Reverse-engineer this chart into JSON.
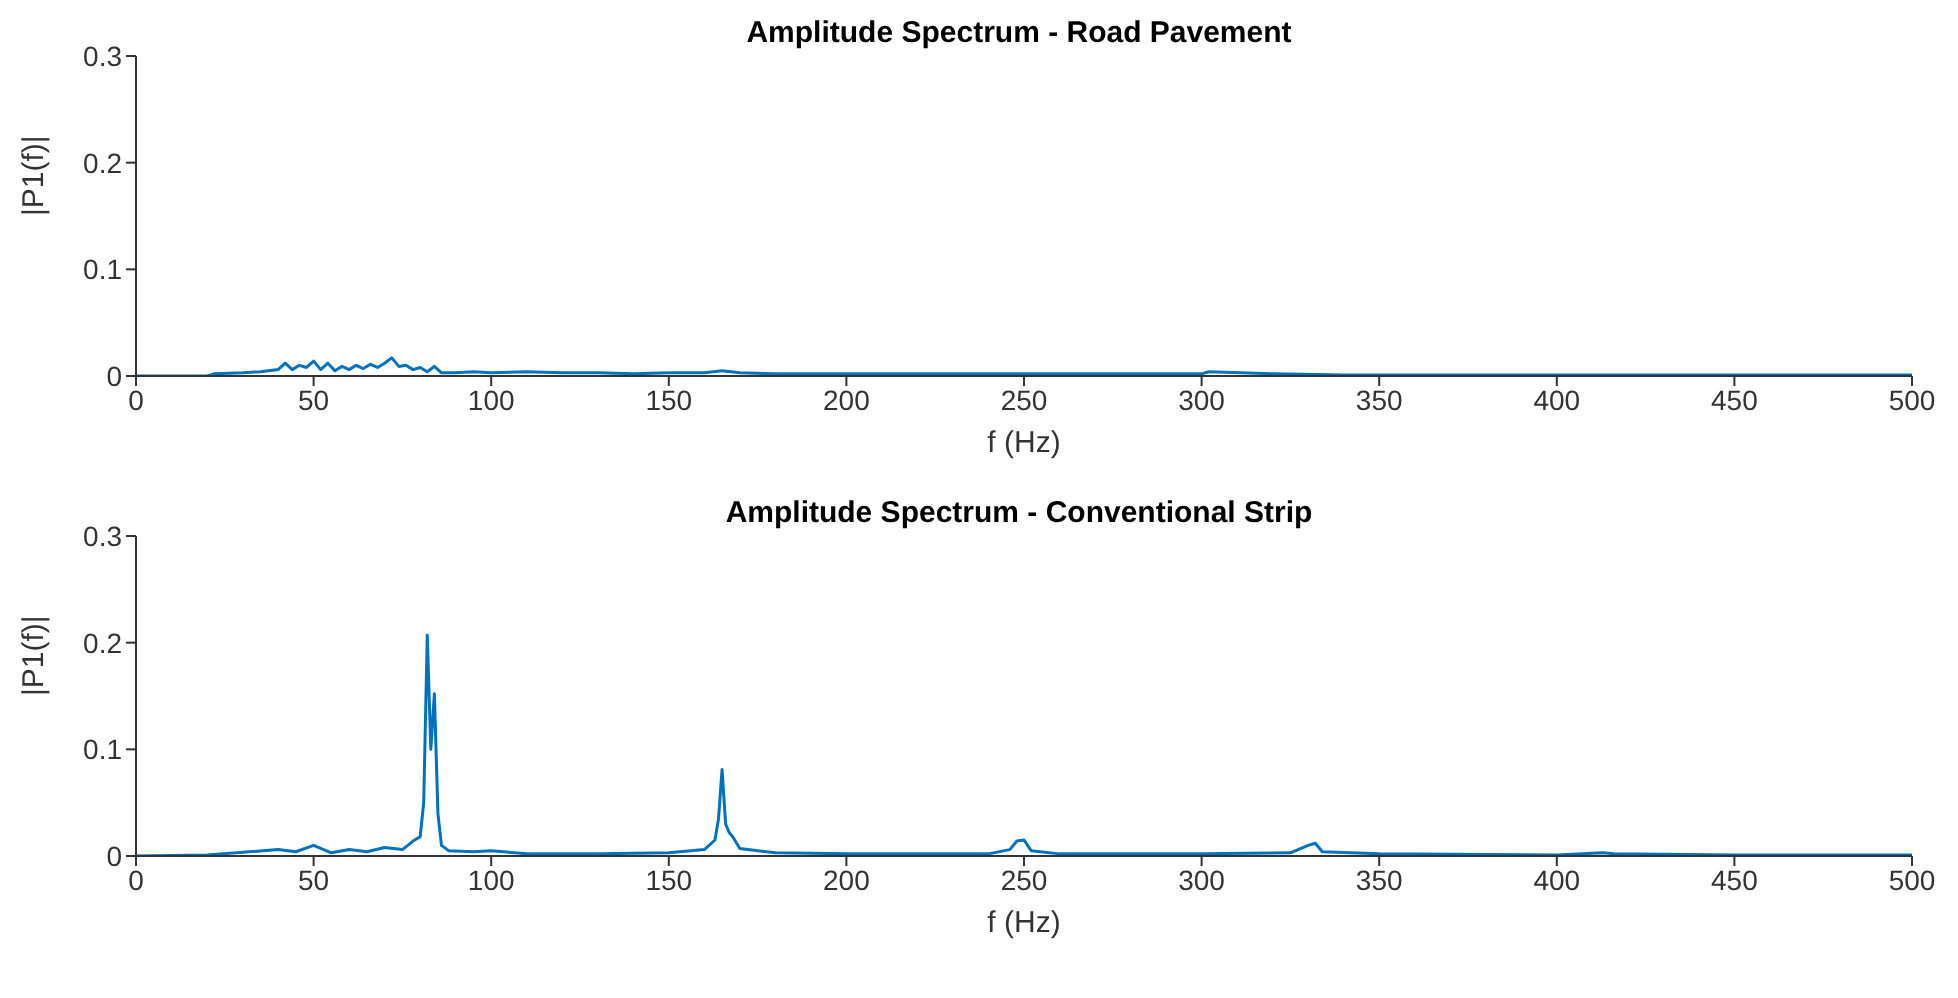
{
  "chart_data": [
    {
      "type": "line",
      "title": "Amplitude Spectrum - Road Pavement",
      "xlabel": "f (Hz)",
      "ylabel": "|P1(f)|",
      "xlim": [
        0,
        500
      ],
      "xticks": [
        0,
        50,
        100,
        150,
        200,
        250,
        300,
        350,
        400,
        450,
        500
      ],
      "ylim": [
        0,
        0.3
      ],
      "yticks": [
        0,
        0.1,
        0.2,
        0.3
      ],
      "grid": false,
      "legend": false,
      "marker": "none",
      "line_style": "solid",
      "series": [
        {
          "color": "#0072bd",
          "x": [
            0,
            20,
            22,
            30,
            35,
            40,
            42,
            44,
            46,
            48,
            50,
            52,
            54,
            56,
            58,
            60,
            62,
            64,
            66,
            68,
            70,
            72,
            74,
            76,
            78,
            80,
            82,
            84,
            86,
            90,
            95,
            100,
            110,
            120,
            130,
            140,
            150,
            160,
            165,
            170,
            180,
            190,
            200,
            220,
            240,
            260,
            280,
            300,
            302,
            320,
            340,
            360,
            380,
            400,
            420,
            440,
            460,
            480,
            500
          ],
          "values": [
            0,
            0,
            0.002,
            0.003,
            0.004,
            0.006,
            0.012,
            0.006,
            0.01,
            0.008,
            0.014,
            0.006,
            0.012,
            0.005,
            0.009,
            0.006,
            0.01,
            0.007,
            0.011,
            0.008,
            0.012,
            0.017,
            0.009,
            0.01,
            0.006,
            0.008,
            0.004,
            0.009,
            0.003,
            0.003,
            0.004,
            0.003,
            0.004,
            0.003,
            0.003,
            0.002,
            0.003,
            0.003,
            0.005,
            0.003,
            0.002,
            0.002,
            0.002,
            0.002,
            0.002,
            0.002,
            0.002,
            0.002,
            0.004,
            0.002,
            0.001,
            0.001,
            0.001,
            0.001,
            0.001,
            0.001,
            0.001,
            0.001,
            0.001
          ]
        }
      ]
    },
    {
      "type": "line",
      "title": "Amplitude Spectrum - Conventional Strip",
      "xlabel": "f (Hz)",
      "ylabel": "|P1(f)|",
      "xlim": [
        0,
        500
      ],
      "xticks": [
        0,
        50,
        100,
        150,
        200,
        250,
        300,
        350,
        400,
        450,
        500
      ],
      "ylim": [
        0,
        0.3
      ],
      "yticks": [
        0,
        0.1,
        0.2,
        0.3
      ],
      "grid": false,
      "legend": false,
      "marker": "none",
      "line_style": "solid",
      "series": [
        {
          "color": "#0072bd",
          "x": [
            0,
            20,
            40,
            45,
            50,
            55,
            60,
            65,
            70,
            75,
            78,
            80,
            81,
            82,
            83,
            84,
            85,
            86,
            88,
            95,
            100,
            110,
            130,
            150,
            160,
            163,
            164,
            165,
            166,
            167,
            168,
            170,
            180,
            200,
            220,
            240,
            246,
            248,
            250,
            252,
            260,
            300,
            325,
            330,
            332,
            334,
            350,
            400,
            413,
            416,
            450,
            500
          ],
          "values": [
            0,
            0.001,
            0.006,
            0.004,
            0.01,
            0.003,
            0.006,
            0.004,
            0.008,
            0.006,
            0.014,
            0.018,
            0.05,
            0.207,
            0.1,
            0.152,
            0.04,
            0.01,
            0.005,
            0.004,
            0.005,
            0.002,
            0.002,
            0.003,
            0.006,
            0.015,
            0.035,
            0.081,
            0.03,
            0.022,
            0.018,
            0.007,
            0.003,
            0.002,
            0.002,
            0.002,
            0.006,
            0.014,
            0.015,
            0.005,
            0.002,
            0.002,
            0.003,
            0.01,
            0.012,
            0.004,
            0.002,
            0.001,
            0.003,
            0.002,
            0.001,
            0.001
          ]
        }
      ]
    }
  ]
}
